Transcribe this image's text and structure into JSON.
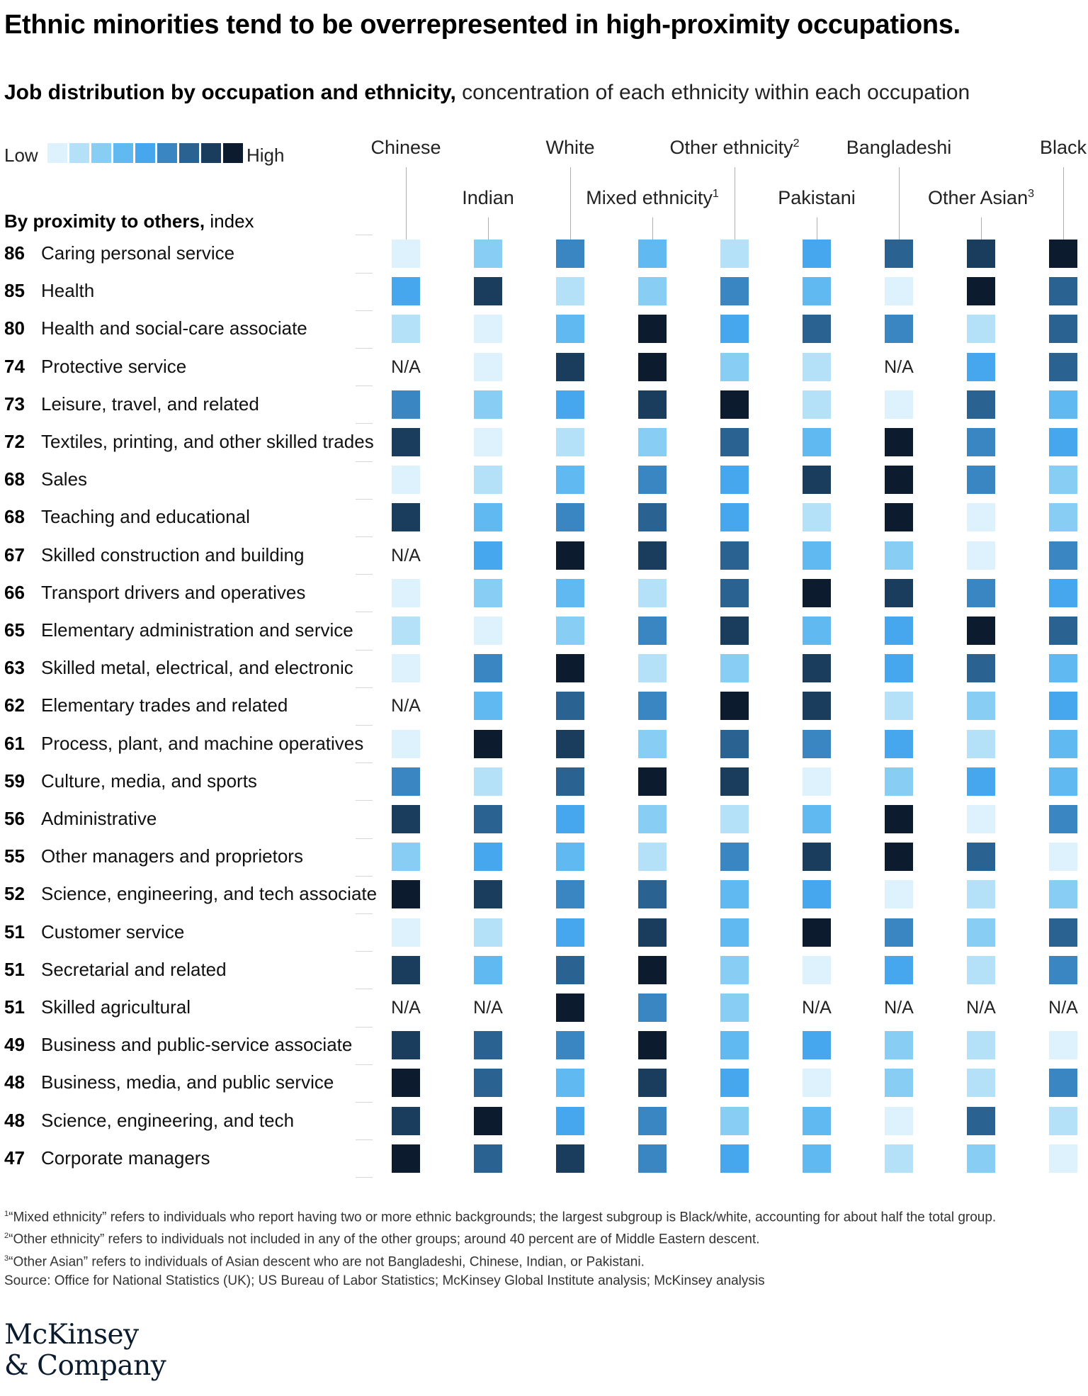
{
  "title": "Ethnic minorities tend to be overrepresented in high-proximity occupations.",
  "subtitle_bold": "Job distribution by occupation and ethnicity,",
  "subtitle_rest": " concentration of each ethnicity within each occupation",
  "legend": {
    "low": "Low",
    "high": "High",
    "colors": [
      "#ddf2fc",
      "#b4e0f8",
      "#88cef4",
      "#61b9f2",
      "#46a6ee",
      "#3a86c3",
      "#2a6292",
      "#1a3c5d",
      "#0c1b2d"
    ]
  },
  "row_header_bold": "By proximity to others,",
  "row_header_rest": " index",
  "chart_data": {
    "type": "heatmap",
    "title": "Ethnic minorities tend to be overrepresented in high-proximity occupations.",
    "value_scale": "1 = Low concentration, 9 = High concentration, null = N/A",
    "columns": [
      {
        "name": "Chinese",
        "sup": ""
      },
      {
        "name": "Indian",
        "sup": ""
      },
      {
        "name": "White",
        "sup": ""
      },
      {
        "name": "Mixed ethnicity",
        "sup": "1"
      },
      {
        "name": "Other ethnicity",
        "sup": "2"
      },
      {
        "name": "Pakistani",
        "sup": ""
      },
      {
        "name": "Bangladeshi",
        "sup": ""
      },
      {
        "name": "Other Asian",
        "sup": "3"
      },
      {
        "name": "Black",
        "sup": ""
      }
    ],
    "na_label": "N/A",
    "rows": [
      {
        "score": "86",
        "occupation": "Caring personal service",
        "values": [
          1,
          3,
          6,
          4,
          2,
          5,
          7,
          8,
          9
        ]
      },
      {
        "score": "85",
        "occupation": "Health",
        "values": [
          5,
          8,
          2,
          3,
          6,
          4,
          1,
          9,
          7
        ]
      },
      {
        "score": "80",
        "occupation": "Health and social-care associate",
        "values": [
          2,
          1,
          4,
          9,
          5,
          7,
          6,
          2,
          7
        ]
      },
      {
        "score": "74",
        "occupation": "Protective service",
        "values": [
          null,
          1,
          8,
          9,
          3,
          2,
          null,
          5,
          7
        ]
      },
      {
        "score": "73",
        "occupation": "Leisure, travel, and related",
        "values": [
          6,
          3,
          5,
          8,
          9,
          2,
          1,
          7,
          4
        ]
      },
      {
        "score": "72",
        "occupation": "Textiles, printing, and other skilled trades",
        "values": [
          8,
          1,
          2,
          3,
          7,
          4,
          9,
          6,
          5
        ]
      },
      {
        "score": "68",
        "occupation": "Sales",
        "values": [
          1,
          2,
          4,
          6,
          5,
          8,
          9,
          6,
          3
        ]
      },
      {
        "score": "68",
        "occupation": "Teaching and educational",
        "values": [
          8,
          4,
          6,
          7,
          5,
          2,
          9,
          1,
          3
        ]
      },
      {
        "score": "67",
        "occupation": "Skilled construction and building",
        "values": [
          null,
          5,
          9,
          8,
          7,
          4,
          3,
          1,
          6
        ]
      },
      {
        "score": "66",
        "occupation": "Transport drivers and operatives",
        "values": [
          1,
          3,
          4,
          2,
          7,
          9,
          8,
          6,
          5
        ]
      },
      {
        "score": "65",
        "occupation": "Elementary administration and service",
        "values": [
          2,
          1,
          3,
          6,
          8,
          4,
          5,
          9,
          7
        ]
      },
      {
        "score": "63",
        "occupation": "Skilled metal, electrical, and electronic",
        "values": [
          1,
          6,
          9,
          2,
          3,
          8,
          5,
          7,
          4
        ]
      },
      {
        "score": "62",
        "occupation": "Elementary trades and related",
        "values": [
          null,
          4,
          7,
          6,
          9,
          8,
          2,
          3,
          5
        ]
      },
      {
        "score": "61",
        "occupation": "Process, plant, and machine operatives",
        "values": [
          1,
          9,
          8,
          3,
          7,
          6,
          5,
          2,
          4
        ]
      },
      {
        "score": "59",
        "occupation": "Culture, media, and sports",
        "values": [
          6,
          2,
          7,
          9,
          8,
          1,
          3,
          5,
          4
        ]
      },
      {
        "score": "56",
        "occupation": "Administrative",
        "values": [
          8,
          7,
          5,
          3,
          2,
          4,
          9,
          1,
          6
        ]
      },
      {
        "score": "55",
        "occupation": "Other managers and proprietors",
        "values": [
          3,
          5,
          4,
          2,
          6,
          8,
          9,
          7,
          1
        ]
      },
      {
        "score": "52",
        "occupation": "Science, engineering, and tech associate",
        "values": [
          9,
          8,
          6,
          7,
          4,
          5,
          1,
          2,
          3
        ]
      },
      {
        "score": "51",
        "occupation": "Customer service",
        "values": [
          1,
          2,
          5,
          8,
          4,
          9,
          6,
          3,
          7
        ]
      },
      {
        "score": "51",
        "occupation": "Secretarial and related",
        "values": [
          8,
          4,
          7,
          9,
          3,
          1,
          5,
          2,
          6
        ]
      },
      {
        "score": "51",
        "occupation": "Skilled agricultural",
        "values": [
          null,
          null,
          9,
          6,
          3,
          null,
          null,
          null,
          null
        ]
      },
      {
        "score": "49",
        "occupation": "Business and public-service associate",
        "values": [
          8,
          7,
          6,
          9,
          4,
          5,
          3,
          2,
          1
        ]
      },
      {
        "score": "48",
        "occupation": "Business, media, and public service",
        "values": [
          9,
          7,
          4,
          8,
          5,
          1,
          3,
          2,
          6
        ]
      },
      {
        "score": "48",
        "occupation": "Science, engineering, and tech",
        "values": [
          8,
          9,
          5,
          6,
          3,
          4,
          1,
          7,
          2
        ]
      },
      {
        "score": "47",
        "occupation": "Corporate managers",
        "values": [
          9,
          7,
          8,
          6,
          5,
          4,
          2,
          3,
          1
        ]
      }
    ]
  },
  "footnotes": [
    {
      "sup": "1",
      "text": "“Mixed ethnicity” refers to individuals who report having two or more ethnic backgrounds; the largest subgroup is Black/white, accounting for about half the total group."
    },
    {
      "sup": "2",
      "text": "“Other ethnicity” refers to individuals not included in any of the other groups; around 40 percent are of Middle Eastern descent."
    },
    {
      "sup": "3",
      "text": "“Other Asian” refers to individuals of Asian descent who are not Bangladeshi, Chinese, Indian, or Pakistani."
    }
  ],
  "source": "Source: Office for National Statistics (UK); US Bureau of Labor Statistics; McKinsey Global Institute analysis; McKinsey analysis",
  "logo": {
    "line1": "McKinsey",
    "line2": "& Company"
  }
}
